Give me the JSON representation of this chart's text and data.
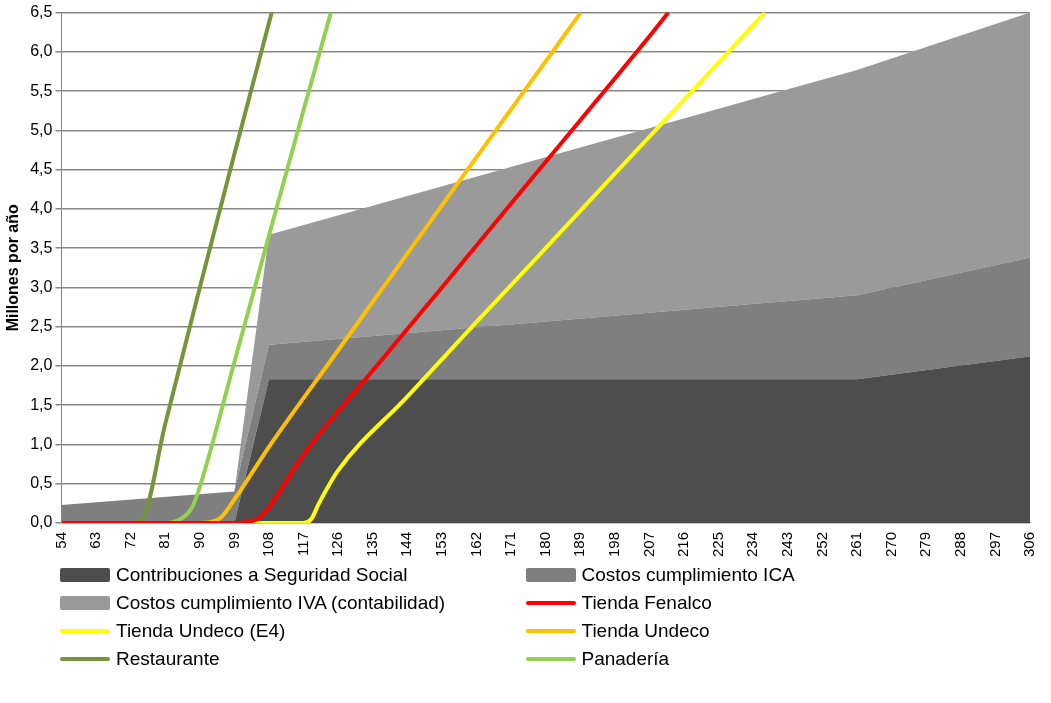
{
  "chart_data": {
    "type": "area",
    "stacked": true,
    "ylabel": "Millones por año",
    "grid": "y",
    "legend": "bottom",
    "marker": "none",
    "line_style": "solid",
    "x": [
      54,
      99,
      108,
      261,
      306
    ],
    "xlim": [
      54,
      306
    ],
    "xticks": [
      54,
      63,
      72,
      81,
      90,
      99,
      108,
      117,
      126,
      135,
      144,
      153,
      162,
      171,
      180,
      189,
      198,
      207,
      216,
      225,
      234,
      243,
      252,
      261,
      270,
      279,
      288,
      297,
      306
    ],
    "ylim": [
      0,
      6.5
    ],
    "yticks": [
      {
        "value": 0,
        "label": "0,0"
      },
      {
        "value": 0.5,
        "label": "0,5"
      },
      {
        "value": 1,
        "label": "1,0"
      },
      {
        "value": 1.5,
        "label": "1,5"
      },
      {
        "value": 2,
        "label": "2,0"
      },
      {
        "value": 2.5,
        "label": "2,5"
      },
      {
        "value": 3,
        "label": "3,0"
      },
      {
        "value": 3.5,
        "label": "3,5"
      },
      {
        "value": 4,
        "label": "4,0"
      },
      {
        "value": 4.5,
        "label": "4,5"
      },
      {
        "value": 5,
        "label": "5,0"
      },
      {
        "value": 5.5,
        "label": "5,5"
      },
      {
        "value": 6,
        "label": "6,0"
      },
      {
        "value": 6.5,
        "label": "6,5"
      }
    ],
    "series": [
      {
        "name": "Contribuciones a Seguridad Social",
        "type": "area",
        "color": "#4d4d4d",
        "values": [
          0,
          0,
          1.83,
          1.83,
          2.12
        ]
      },
      {
        "name": "Costos cumplimiento ICA",
        "type": "area",
        "color": "#7f7f7f",
        "values": [
          0.23,
          0.4,
          0.44,
          1.07,
          1.26
        ]
      },
      {
        "name": "Costos cumplimiento IVA (contabilidad)",
        "type": "area",
        "color": "#9a9a9a",
        "values": [
          0,
          0,
          1.4,
          2.87,
          3.12
        ]
      },
      {
        "name": "Tienda Fenalco",
        "type": "line",
        "color": "#ff0000",
        "x": [
          54,
          99,
          105,
          108,
          117,
          135,
          153,
          171,
          189,
          207,
          211.9
        ],
        "values": [
          0,
          0,
          0.05,
          0.2,
          0.87,
          1.94,
          3.0,
          4.07,
          5.13,
          6.2,
          6.5
        ]
      },
      {
        "name": "Tienda Undeco (E4)",
        "type": "line",
        "color": "#ffff00",
        "x": [
          54,
          108,
          117,
          119,
          121,
          126,
          144,
          162,
          180,
          198,
          216,
          234,
          237
        ],
        "values": [
          0,
          0,
          0,
          0.05,
          0.25,
          0.67,
          1.61,
          2.56,
          3.5,
          4.45,
          5.39,
          6.34,
          6.5
        ]
      },
      {
        "name": "Tienda Undeco",
        "type": "line",
        "color": "#ffc000",
        "x": [
          54,
          90,
          95,
          99,
          108,
          126,
          144,
          162,
          180,
          189.1
        ],
        "values": [
          0,
          0,
          0.05,
          0.3,
          0.97,
          2.2,
          3.43,
          4.66,
          5.88,
          6.5
        ]
      },
      {
        "name": "Restaurante",
        "type": "line",
        "color": "#77933c",
        "x": [
          54,
          72,
          75,
          81,
          90,
          99,
          108,
          108.7
        ],
        "values": [
          0,
          0,
          0.05,
          1.26,
          3.0,
          4.7,
          6.37,
          6.5
        ]
      },
      {
        "name": "Panadería",
        "type": "line",
        "color": "#92d050",
        "x": [
          54,
          81,
          85,
          88,
          90,
          99,
          108,
          117,
          124.1
        ],
        "values": [
          0,
          0,
          0.05,
          0.2,
          0.46,
          2.05,
          3.66,
          5.26,
          6.5
        ]
      }
    ]
  }
}
